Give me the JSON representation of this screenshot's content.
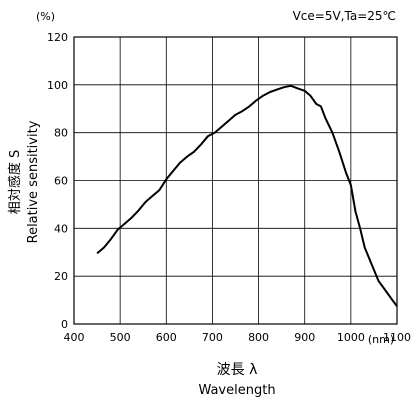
{
  "chart_data": {
    "type": "line",
    "y_unit": "(%)",
    "x_unit": "(nm)",
    "condition": "Vce=5V,Ta=25℃",
    "xlabel_jp": "波長 λ",
    "xlabel_en": "Wavelength",
    "ylabel_jp": "相対感度 S",
    "ylabel_en": "Relative sensitivity",
    "xlim": [
      400,
      1100
    ],
    "ylim": [
      0,
      120
    ],
    "x_ticks": [
      400,
      500,
      600,
      700,
      800,
      900,
      1000,
      1100
    ],
    "y_ticks": [
      0,
      20,
      40,
      60,
      80,
      100,
      120
    ],
    "grid": true,
    "series": [
      {
        "points": [
          [
            450,
            29.5
          ],
          [
            465,
            32
          ],
          [
            480,
            35.5
          ],
          [
            495,
            39.5
          ],
          [
            510,
            42
          ],
          [
            525,
            44.5
          ],
          [
            540,
            47.5
          ],
          [
            555,
            51
          ],
          [
            570,
            53.5
          ],
          [
            585,
            56
          ],
          [
            600,
            60.5
          ],
          [
            615,
            64
          ],
          [
            630,
            67.5
          ],
          [
            645,
            70
          ],
          [
            660,
            72
          ],
          [
            675,
            75
          ],
          [
            690,
            78.5
          ],
          [
            705,
            80
          ],
          [
            720,
            82.5
          ],
          [
            735,
            85
          ],
          [
            750,
            87.5
          ],
          [
            765,
            89
          ],
          [
            780,
            91
          ],
          [
            795,
            93.5
          ],
          [
            810,
            95.5
          ],
          [
            825,
            97
          ],
          [
            840,
            98
          ],
          [
            855,
            99
          ],
          [
            870,
            99.6
          ],
          [
            885,
            98.5
          ],
          [
            900,
            97.5
          ],
          [
            912,
            95.5
          ],
          [
            925,
            92
          ],
          [
            935,
            91
          ],
          [
            945,
            86
          ],
          [
            960,
            80
          ],
          [
            975,
            72
          ],
          [
            990,
            63
          ],
          [
            1000,
            58
          ],
          [
            1010,
            47
          ],
          [
            1020,
            40
          ],
          [
            1030,
            32
          ],
          [
            1045,
            25
          ],
          [
            1060,
            18
          ],
          [
            1075,
            14
          ],
          [
            1090,
            10
          ],
          [
            1100,
            7.5
          ]
        ]
      }
    ]
  }
}
